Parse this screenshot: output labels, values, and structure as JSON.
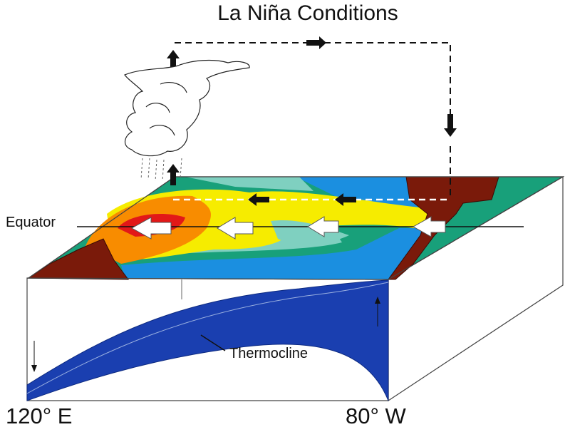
{
  "title": "La Niña Conditions",
  "labels": {
    "equator": "Equator",
    "thermocline": "Thermocline",
    "west": "120° E",
    "east": "80° W"
  }
}
